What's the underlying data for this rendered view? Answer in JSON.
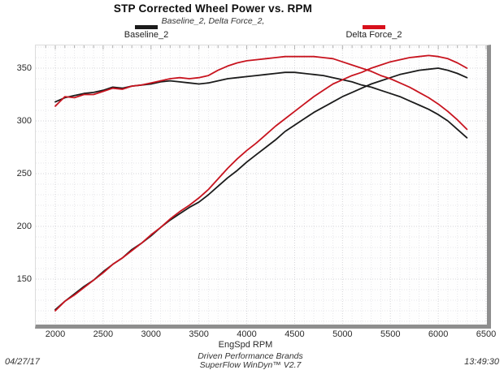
{
  "header": {
    "title": "STP Corrected Wheel Power vs. RPM",
    "subtitle": "Baseline_2, Delta Force_2,"
  },
  "legend": [
    {
      "label": "Baseline_2",
      "color": "#1b1b1b"
    },
    {
      "label": "Delta Force_2",
      "color": "#d8101c"
    }
  ],
  "footer": {
    "date": "04/27/17",
    "time": "13:49:30",
    "brand_line1": "Driven Performance Brands",
    "brand_line2": "SuperFlow WinDyn™ V2.7"
  },
  "colors": {
    "baseline_curve": "#1b1b1b",
    "delta_curve": "#c8141f",
    "grid_minor": "#e7e7ea",
    "grid_major": "#d4d4d8",
    "axis_thick_border": "#8e8e8e",
    "tick_mark": "#b0b0b0"
  },
  "chart_data": {
    "type": "line",
    "title": "STP Corrected Wheel Power vs. RPM",
    "subtitle": "Baseline_2, Delta Force_2,",
    "xlabel": "EngSpd RPM",
    "ylabel": "",
    "xlim": [
      1800,
      6510
    ],
    "ylim": [
      107,
      371
    ],
    "x_ticks": [
      2000,
      2500,
      3000,
      3500,
      4000,
      4500,
      5000,
      5500,
      6000,
      6500
    ],
    "y_ticks": [
      150,
      200,
      250,
      300,
      350
    ],
    "grid": "dotted, minor every 100 RPM / 10 units, major every 500 RPM / 50 units",
    "legend_position": "top",
    "x": [
      2000,
      2100,
      2200,
      2300,
      2400,
      2500,
      2600,
      2700,
      2800,
      2900,
      3000,
      3100,
      3200,
      3300,
      3400,
      3500,
      3600,
      3700,
      3800,
      3900,
      4000,
      4100,
      4200,
      4300,
      4400,
      4500,
      4600,
      4700,
      4800,
      4900,
      5000,
      5100,
      5200,
      5300,
      5400,
      5500,
      5600,
      5700,
      5800,
      5900,
      6000,
      6100,
      6200,
      6300
    ],
    "series": [
      {
        "name": "Baseline_2 torque",
        "run": "Baseline_2",
        "color": "#1b1b1b",
        "values": [
          318,
          322,
          324,
          326,
          327,
          329,
          332,
          331,
          333,
          334,
          335,
          337,
          338,
          337,
          336,
          335,
          336,
          338,
          340,
          341,
          342,
          343,
          344,
          345,
          346,
          346,
          345,
          344,
          343,
          341,
          339,
          337,
          334,
          332,
          329,
          326,
          323,
          319,
          315,
          311,
          306,
          300,
          292,
          284
        ]
      },
      {
        "name": "Baseline_2 power",
        "run": "Baseline_2",
        "color": "#1b1b1b",
        "values": [
          121,
          129,
          136,
          143,
          149,
          157,
          164,
          170,
          178,
          184,
          191,
          199,
          206,
          212,
          218,
          223,
          230,
          238,
          246,
          253,
          261,
          268,
          275,
          282,
          290,
          296,
          302,
          308,
          313,
          318,
          323,
          327,
          331,
          335,
          338,
          341,
          344,
          346,
          348,
          349,
          350,
          348,
          345,
          341
        ]
      },
      {
        "name": "Delta Force_2 torque",
        "run": "Delta Force_2",
        "color": "#c8141f",
        "values": [
          314,
          323,
          322,
          325,
          325,
          328,
          331,
          330,
          333,
          334,
          336,
          338,
          340,
          341,
          340,
          341,
          343,
          348,
          352,
          355,
          357,
          358,
          359,
          360,
          361,
          361,
          361,
          361,
          360,
          359,
          356,
          353,
          350,
          347,
          343,
          340,
          336,
          332,
          327,
          322,
          316,
          309,
          301,
          292
        ]
      },
      {
        "name": "Delta Force_2 power",
        "run": "Delta Force_2",
        "color": "#c8141f",
        "values": [
          120,
          129,
          135,
          142,
          149,
          156,
          164,
          170,
          177,
          184,
          192,
          199,
          207,
          214,
          220,
          227,
          235,
          245,
          255,
          264,
          272,
          279,
          287,
          295,
          302,
          309,
          316,
          323,
          329,
          335,
          339,
          343,
          346,
          350,
          353,
          356,
          358,
          360,
          361,
          362,
          361,
          359,
          355,
          350
        ]
      }
    ]
  }
}
